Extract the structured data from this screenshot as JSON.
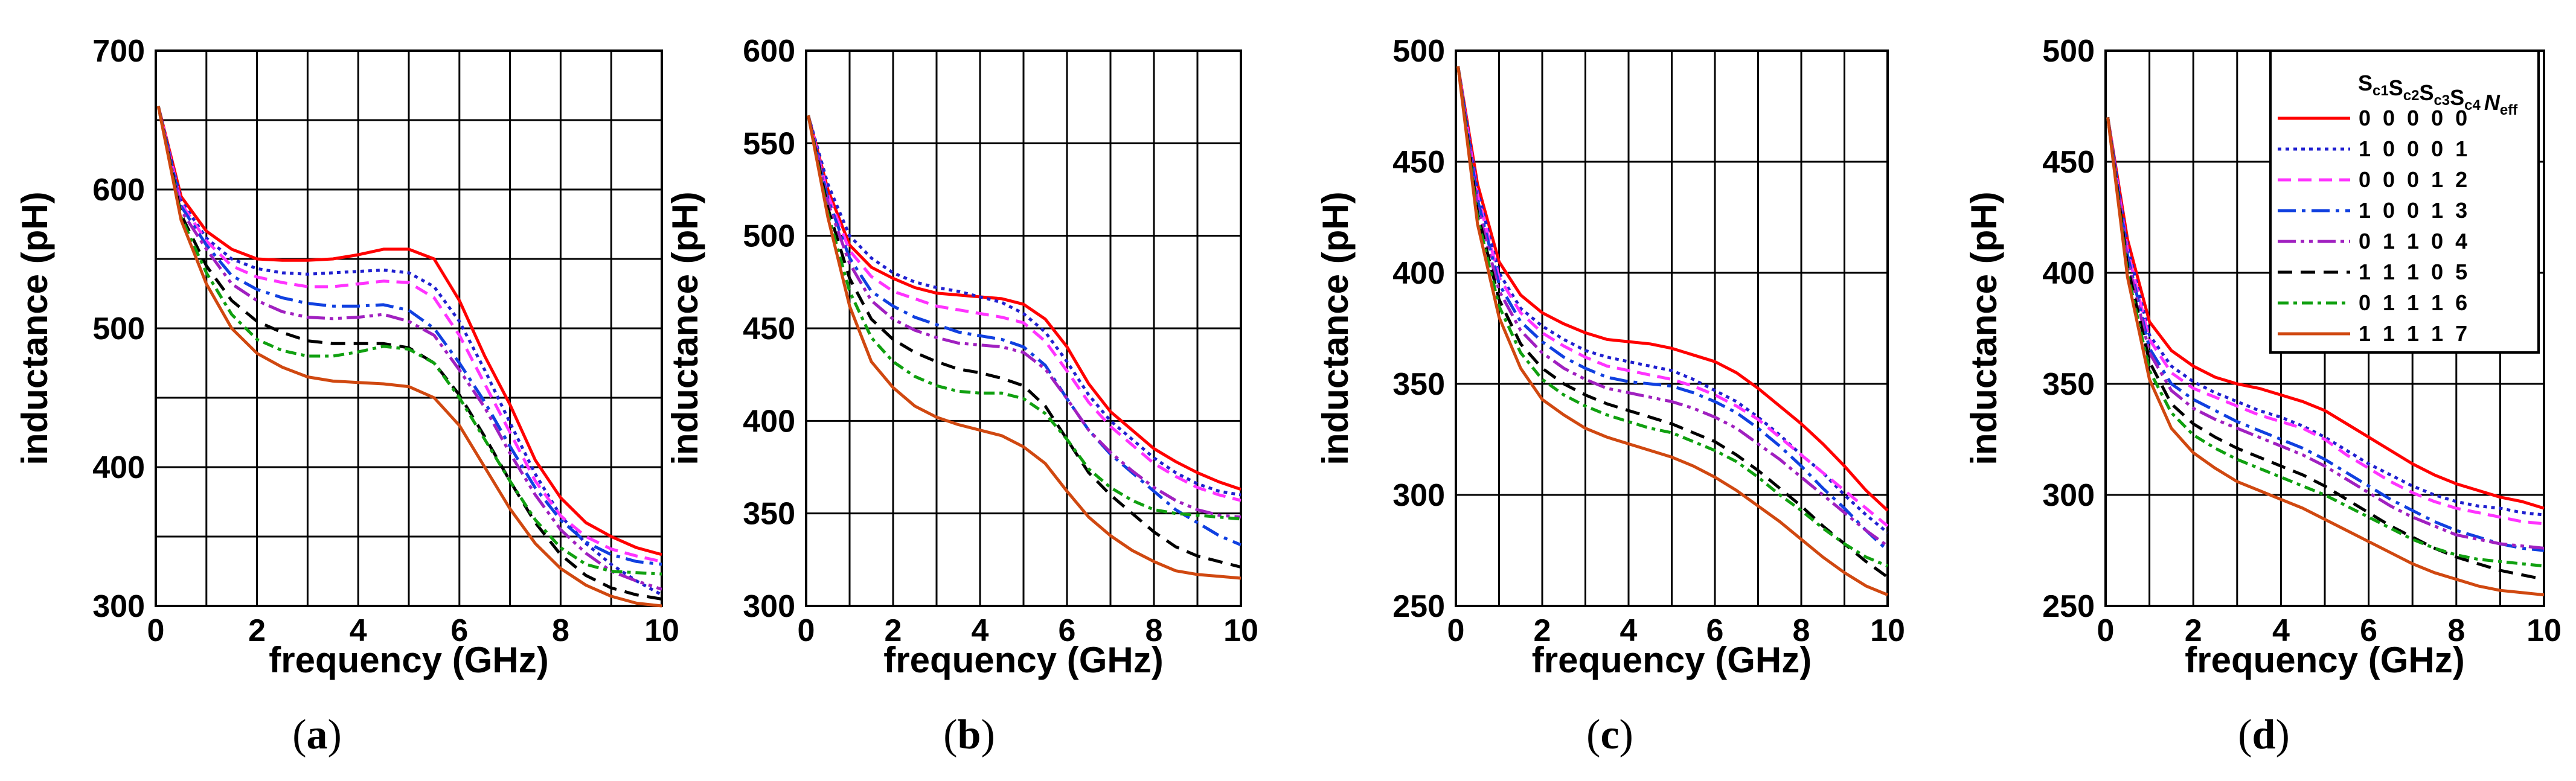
{
  "chart_data": [
    {
      "type": "line",
      "caption": "a",
      "xlabel": "frequency (GHz)",
      "ylabel": "inductance (pH)",
      "xlim": [
        0,
        10
      ],
      "ylim": [
        300,
        700
      ],
      "xticks": [
        0,
        2,
        4,
        6,
        8,
        10
      ],
      "yticks": [
        300,
        400,
        500,
        600,
        700
      ],
      "x": [
        0.05,
        0.5,
        1,
        1.5,
        2,
        2.5,
        3,
        3.5,
        4,
        4.5,
        5,
        5.5,
        6,
        6.5,
        7,
        7.5,
        8,
        8.5,
        9,
        9.5,
        10
      ],
      "series": [
        {
          "name": "0 0 0 0 0",
          "values": [
            660,
            595,
            570,
            557,
            550,
            549,
            549,
            550,
            553,
            557,
            557,
            550,
            520,
            480,
            445,
            405,
            378,
            360,
            350,
            342,
            337
          ]
        },
        {
          "name": "1 0 0 0 1",
          "values": [
            660,
            592,
            565,
            550,
            543,
            540,
            539,
            540,
            541,
            542,
            540,
            530,
            505,
            470,
            432,
            395,
            365,
            345,
            330,
            318,
            308
          ]
        },
        {
          "name": "0 0 0 1 2",
          "values": [
            660,
            590,
            563,
            545,
            537,
            533,
            530,
            530,
            532,
            534,
            533,
            522,
            495,
            460,
            425,
            390,
            365,
            350,
            341,
            336,
            332
          ]
        },
        {
          "name": "1 0 0 1 3",
          "values": [
            660,
            588,
            560,
            538,
            528,
            522,
            518,
            516,
            516,
            517,
            513,
            500,
            475,
            447,
            415,
            385,
            362,
            346,
            337,
            332,
            330
          ]
        },
        {
          "name": "0 1 1 0 4",
          "values": [
            660,
            585,
            557,
            532,
            520,
            512,
            508,
            507,
            508,
            510,
            505,
            495,
            470,
            443,
            410,
            380,
            355,
            338,
            325,
            318,
            312
          ]
        },
        {
          "name": "1 1 1 0 5",
          "values": [
            660,
            582,
            545,
            520,
            505,
            497,
            491,
            489,
            489,
            489,
            486,
            475,
            452,
            422,
            390,
            360,
            337,
            322,
            313,
            308,
            305
          ]
        },
        {
          "name": "0 1 1 1 6",
          "values": [
            660,
            580,
            540,
            510,
            492,
            484,
            480,
            480,
            483,
            487,
            485,
            475,
            450,
            420,
            390,
            362,
            342,
            330,
            325,
            324,
            323
          ]
        },
        {
          "name": "1 1 1 1 7",
          "values": [
            660,
            578,
            532,
            500,
            482,
            472,
            465,
            462,
            461,
            460,
            458,
            450,
            430,
            400,
            370,
            345,
            327,
            315,
            307,
            302,
            300
          ]
        }
      ]
    },
    {
      "type": "line",
      "caption": "b",
      "xlabel": "frequency (GHz)",
      "ylabel": "inductance (pH)",
      "xlim": [
        0,
        10
      ],
      "ylim": [
        300,
        600
      ],
      "xticks": [
        0,
        2,
        4,
        6,
        8,
        10
      ],
      "yticks": [
        300,
        350,
        400,
        450,
        500,
        550,
        600
      ],
      "x": [
        0.05,
        0.5,
        1,
        1.5,
        2,
        2.5,
        3,
        3.5,
        4,
        4.5,
        5,
        5.5,
        6,
        6.5,
        7,
        7.5,
        8,
        8.5,
        9,
        9.5,
        10
      ],
      "series": [
        {
          "name": "0 0 0 0 0",
          "values": [
            565,
            525,
            495,
            483,
            477,
            472,
            469,
            468,
            467,
            466,
            463,
            455,
            440,
            420,
            405,
            395,
            385,
            378,
            372,
            367,
            363
          ]
        },
        {
          "name": "1 0 0 0 1",
          "values": [
            565,
            528,
            500,
            488,
            480,
            475,
            472,
            470,
            467,
            464,
            458,
            448,
            432,
            414,
            400,
            390,
            380,
            372,
            366,
            362,
            360
          ]
        },
        {
          "name": "0 0 0 1 2",
          "values": [
            565,
            522,
            492,
            478,
            470,
            466,
            462,
            460,
            458,
            456,
            453,
            443,
            427,
            410,
            397,
            387,
            377,
            370,
            364,
            360,
            357
          ]
        },
        {
          "name": "1 0 0 1 3",
          "values": [
            565,
            520,
            488,
            470,
            462,
            456,
            452,
            448,
            446,
            444,
            440,
            430,
            412,
            395,
            382,
            372,
            362,
            352,
            345,
            338,
            333
          ]
        },
        {
          "name": "0 1 1 0 4",
          "values": [
            565,
            518,
            485,
            465,
            455,
            449,
            445,
            442,
            441,
            440,
            437,
            428,
            412,
            395,
            383,
            373,
            364,
            357,
            352,
            349,
            348
          ]
        },
        {
          "name": "1 1 1 0 5",
          "values": [
            565,
            515,
            477,
            455,
            444,
            437,
            432,
            428,
            426,
            423,
            419,
            408,
            390,
            372,
            360,
            350,
            340,
            332,
            327,
            324,
            321
          ]
        },
        {
          "name": "0 1 1 1 6",
          "values": [
            565,
            512,
            470,
            445,
            432,
            424,
            419,
            416,
            415,
            415,
            412,
            404,
            390,
            374,
            364,
            357,
            352,
            350,
            349,
            348,
            347
          ]
        },
        {
          "name": "1 1 1 1 7",
          "values": [
            565,
            510,
            462,
            432,
            418,
            408,
            402,
            398,
            395,
            392,
            386,
            377,
            362,
            348,
            338,
            330,
            324,
            319,
            317,
            316,
            315
          ]
        }
      ]
    },
    {
      "type": "line",
      "caption": "c",
      "xlabel": "frequency (GHz)",
      "ylabel": "inductance (pH)",
      "xlim": [
        0,
        10
      ],
      "ylim": [
        250,
        500
      ],
      "xticks": [
        0,
        2,
        4,
        6,
        8,
        10
      ],
      "yticks": [
        250,
        300,
        350,
        400,
        450,
        500
      ],
      "x": [
        0.05,
        0.5,
        1,
        1.5,
        2,
        2.5,
        3,
        3.5,
        4,
        4.5,
        5,
        5.5,
        6,
        6.5,
        7,
        7.5,
        8,
        8.5,
        9,
        9.5,
        10
      ],
      "series": [
        {
          "name": "0 0 0 0 0",
          "values": [
            493,
            440,
            405,
            390,
            382,
            377,
            373,
            370,
            369,
            368,
            366,
            363,
            360,
            355,
            348,
            340,
            332,
            323,
            313,
            302,
            293
          ]
        },
        {
          "name": "1 0 0 0 1",
          "values": [
            493,
            437,
            400,
            384,
            376,
            370,
            365,
            362,
            360,
            358,
            356,
            352,
            347,
            342,
            335,
            327,
            318,
            310,
            300,
            291,
            283
          ]
        },
        {
          "name": "0 0 0 1 2",
          "values": [
            493,
            435,
            398,
            382,
            373,
            367,
            362,
            358,
            356,
            354,
            352,
            349,
            345,
            340,
            334,
            326,
            318,
            310,
            302,
            294,
            286
          ]
        },
        {
          "name": "1 0 0 1 3",
          "values": [
            493,
            433,
            395,
            378,
            369,
            362,
            357,
            353,
            351,
            350,
            349,
            346,
            342,
            337,
            330,
            322,
            313,
            303,
            294,
            284,
            275
          ]
        },
        {
          "name": "0 1 1 0 4",
          "values": [
            493,
            430,
            392,
            374,
            364,
            357,
            352,
            348,
            346,
            344,
            342,
            339,
            335,
            330,
            323,
            316,
            308,
            300,
            292,
            284,
            277
          ]
        },
        {
          "name": "1 1 1 0 5",
          "values": [
            493,
            427,
            388,
            368,
            357,
            350,
            345,
            341,
            338,
            335,
            332,
            328,
            324,
            318,
            311,
            303,
            295,
            286,
            278,
            270,
            263
          ]
        },
        {
          "name": "0 1 1 1 6",
          "values": [
            493,
            425,
            385,
            364,
            352,
            345,
            340,
            336,
            333,
            330,
            328,
            324,
            320,
            315,
            308,
            300,
            293,
            285,
            278,
            272,
            268
          ]
        },
        {
          "name": "1 1 1 1 7",
          "values": [
            493,
            422,
            380,
            357,
            343,
            336,
            330,
            326,
            323,
            320,
            317,
            313,
            308,
            302,
            295,
            288,
            280,
            272,
            265,
            259,
            255
          ]
        }
      ]
    },
    {
      "type": "line",
      "caption": "d",
      "xlabel": "frequency (GHz)",
      "ylabel": "inductance (pH)",
      "xlim": [
        0,
        10
      ],
      "ylim": [
        250,
        500
      ],
      "xticks": [
        0,
        2,
        4,
        6,
        8,
        10
      ],
      "yticks": [
        250,
        300,
        350,
        400,
        450,
        500
      ],
      "x": [
        0.05,
        0.5,
        1,
        1.5,
        2,
        2.5,
        3,
        3.5,
        4,
        4.5,
        5,
        5.5,
        6,
        6.5,
        7,
        7.5,
        8,
        8.5,
        9,
        9.5,
        10
      ],
      "series": [
        {
          "name": "0 0 0 0 0",
          "values": [
            470,
            415,
            378,
            365,
            358,
            353,
            350,
            348,
            345,
            342,
            338,
            332,
            326,
            320,
            314,
            309,
            305,
            302,
            299,
            297,
            294
          ]
        },
        {
          "name": "1 0 0 0 1",
          "values": [
            470,
            412,
            372,
            358,
            351,
            346,
            342,
            338,
            335,
            331,
            326,
            320,
            314,
            309,
            304,
            300,
            297,
            295,
            294,
            292,
            291
          ]
        },
        {
          "name": "0 0 0 1 2",
          "values": [
            470,
            410,
            370,
            355,
            348,
            344,
            340,
            336,
            333,
            330,
            325,
            318,
            312,
            306,
            301,
            297,
            294,
            292,
            290,
            288,
            287
          ]
        },
        {
          "name": "1 0 0 1 3",
          "values": [
            470,
            408,
            366,
            350,
            343,
            338,
            333,
            329,
            325,
            321,
            316,
            310,
            304,
            298,
            293,
            288,
            284,
            281,
            278,
            276,
            275
          ]
        },
        {
          "name": "0 1 1 0 4",
          "values": [
            470,
            406,
            364,
            347,
            339,
            334,
            330,
            326,
            322,
            318,
            313,
            307,
            301,
            295,
            290,
            286,
            282,
            280,
            278,
            277,
            276
          ]
        },
        {
          "name": "1 1 1 0 5",
          "values": [
            470,
            403,
            360,
            341,
            332,
            326,
            321,
            317,
            313,
            309,
            304,
            298,
            292,
            286,
            281,
            276,
            272,
            269,
            266,
            264,
            262
          ]
        },
        {
          "name": "0 1 1 1 6",
          "values": [
            470,
            400,
            356,
            337,
            327,
            321,
            316,
            312,
            308,
            304,
            300,
            295,
            290,
            285,
            280,
            276,
            273,
            271,
            270,
            269,
            268
          ]
        },
        {
          "name": "1 1 1 1 7",
          "values": [
            470,
            398,
            352,
            330,
            319,
            312,
            306,
            302,
            298,
            294,
            289,
            284,
            279,
            274,
            269,
            265,
            262,
            259,
            257,
            256,
            255
          ]
        }
      ]
    }
  ],
  "legend": {
    "header": {
      "s1": "S",
      "s1_sub": "c1",
      "s2": "S",
      "s2_sub": "c2",
      "s3": "S",
      "s3_sub": "c3",
      "s4": "S",
      "s4_sub": "c4",
      "n": "N",
      "n_sub": "eff"
    },
    "rows": [
      {
        "label": "0  0  0  0  0",
        "color": "#ff0000",
        "dash": "none"
      },
      {
        "label": "1  0  0  0  1",
        "color": "#2020d0",
        "dash": "6,7"
      },
      {
        "label": "0  0  0  1  2",
        "color": "#ff33ff",
        "dash": "22,12"
      },
      {
        "label": "1  0  0  1  3",
        "color": "#1040e0",
        "dash": "30,10,6,10"
      },
      {
        "label": "0  1  1  0  4",
        "color": "#a020c0",
        "dash": "30,8,6,8,6,8"
      },
      {
        "label": "1  1  1  0  5",
        "color": "#000000",
        "dash": "24,14"
      },
      {
        "label": "0  1  1  1  6",
        "color": "#10a010",
        "dash": "18,8,6,8"
      },
      {
        "label": "1  1  1  1  7",
        "color": "#d04810",
        "dash": "none"
      }
    ]
  }
}
